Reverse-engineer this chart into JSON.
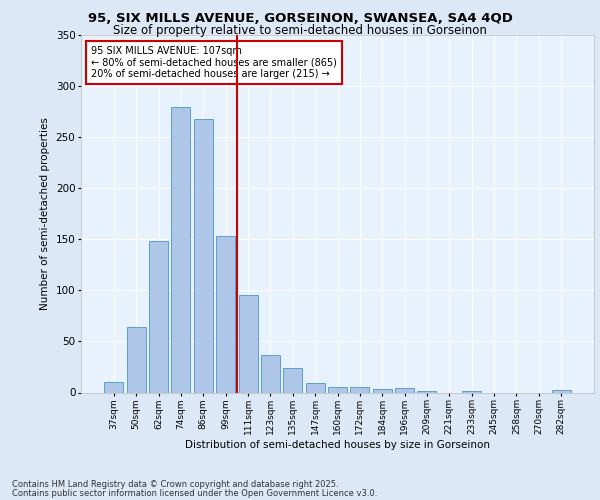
{
  "title_line1": "95, SIX MILLS AVENUE, GORSEINON, SWANSEA, SA4 4QD",
  "title_line2": "Size of property relative to semi-detached houses in Gorseinon",
  "xlabel": "Distribution of semi-detached houses by size in Gorseinon",
  "ylabel": "Number of semi-detached properties",
  "categories": [
    "37sqm",
    "50sqm",
    "62sqm",
    "74sqm",
    "86sqm",
    "99sqm",
    "111sqm",
    "123sqm",
    "135sqm",
    "147sqm",
    "160sqm",
    "172sqm",
    "184sqm",
    "196sqm",
    "209sqm",
    "221sqm",
    "233sqm",
    "245sqm",
    "258sqm",
    "270sqm",
    "282sqm"
  ],
  "values": [
    10,
    64,
    148,
    280,
    268,
    153,
    95,
    37,
    24,
    9,
    5,
    5,
    3,
    4,
    1,
    0,
    1,
    0,
    0,
    0,
    2
  ],
  "bar_color": "#aec6e8",
  "bar_edgecolor": "#5a9fd4",
  "vline_x_index": 6,
  "vline_color": "#cc0000",
  "annotation_text": "95 SIX MILLS AVENUE: 107sqm\n← 80% of semi-detached houses are smaller (865)\n20% of semi-detached houses are larger (215) →",
  "bg_color": "#dce8f5",
  "plot_bg_color": "#e8f2fc",
  "grid_color": "#ffffff",
  "footer_line1": "Contains HM Land Registry data © Crown copyright and database right 2025.",
  "footer_line2": "Contains public sector information licensed under the Open Government Licence v3.0.",
  "ylim": [
    0,
    350
  ],
  "yticks": [
    0,
    50,
    100,
    150,
    200,
    250,
    300,
    350
  ]
}
